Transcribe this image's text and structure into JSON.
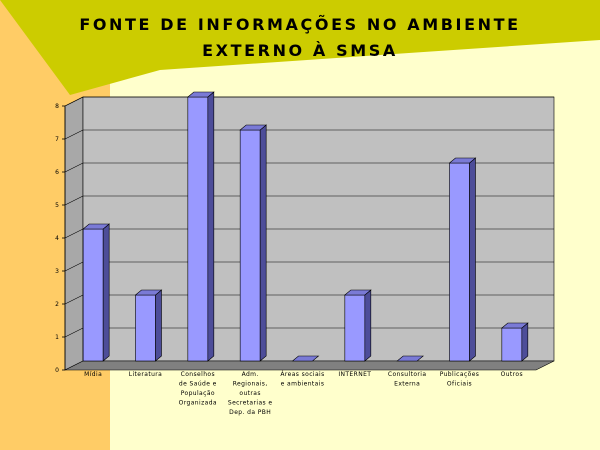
{
  "colors": {
    "background": "#FFFFCC",
    "left_band": "#FFCC66",
    "title_band": "#CCCC00",
    "plot_area": "#C0C0C0",
    "floor": "#808080",
    "bar_front": "#9999FF",
    "bar_side": "#4D4D99",
    "bar_top": "#7A7AD6"
  },
  "chart_data": {
    "type": "bar",
    "title_lines": [
      "FONTE DE INFORMAÇÕES NO AMBIENTE",
      "EXTERNO À SMSA"
    ],
    "categories": [
      [
        "Mídia"
      ],
      [
        "Literatura"
      ],
      [
        "Conselhos",
        "de Saúde e",
        "População",
        "Organizada"
      ],
      [
        "Adm.",
        "Regionais,",
        "outras",
        "Secretarias e",
        "Dep. da PBH"
      ],
      [
        "Áreas sociais",
        "e ambientais"
      ],
      [
        "INTERNET"
      ],
      [
        "Consultoria",
        "Externa"
      ],
      [
        "Publicações",
        "Oficiais"
      ],
      [
        "Outros"
      ]
    ],
    "values": [
      4,
      2,
      8,
      7,
      0,
      2,
      0,
      6,
      1
    ],
    "ylim": [
      0,
      8
    ],
    "yticks": [
      "0",
      "1",
      "2",
      "3",
      "4",
      "5",
      "6",
      "7",
      "8"
    ],
    "grid": true,
    "style": "3d",
    "legend": "none"
  }
}
